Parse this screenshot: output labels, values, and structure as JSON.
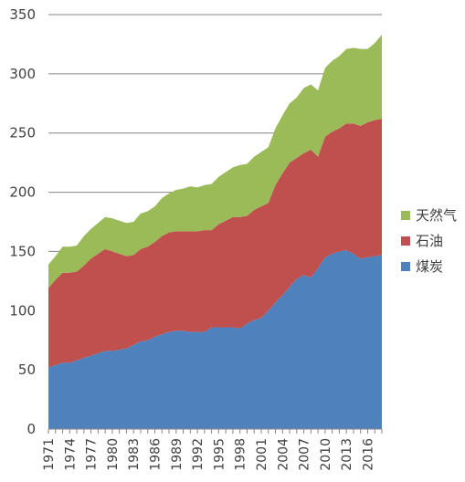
{
  "chart_data": {
    "type": "area",
    "stacked": true,
    "x": [
      1971,
      1972,
      1973,
      1974,
      1975,
      1976,
      1977,
      1978,
      1979,
      1980,
      1981,
      1982,
      1983,
      1984,
      1985,
      1986,
      1987,
      1988,
      1989,
      1990,
      1991,
      1992,
      1993,
      1994,
      1995,
      1996,
      1997,
      1998,
      1999,
      2000,
      2001,
      2002,
      2003,
      2004,
      2005,
      2006,
      2007,
      2008,
      2009,
      2010,
      2011,
      2012,
      2013,
      2014,
      2015,
      2016,
      2017,
      2018
    ],
    "x_tick_labels": [
      "1971",
      "1974",
      "1977",
      "1980",
      "1983",
      "1986",
      "1989",
      "1992",
      "1995",
      "1998",
      "2001",
      "2004",
      "2007",
      "2010",
      "2013",
      "2016"
    ],
    "ylim": [
      0,
      350
    ],
    "y_ticks": [
      0,
      50,
      100,
      150,
      200,
      250,
      300,
      350
    ],
    "grid": "horizontal",
    "legend_position": "right",
    "series": [
      {
        "name": "煤炭",
        "color": "#4f81bd",
        "values": [
          52,
          54,
          56,
          56,
          58,
          60,
          62,
          64,
          66,
          66,
          67,
          68,
          71,
          74,
          75,
          78,
          80,
          82,
          83,
          83,
          82,
          82,
          82,
          86,
          86,
          86,
          86,
          85,
          89,
          92,
          94,
          100,
          107,
          113,
          120,
          127,
          130,
          128,
          136,
          145,
          148,
          150,
          151,
          148,
          144,
          145,
          146,
          147
        ]
      },
      {
        "name": "石油",
        "color": "#c0504d",
        "values": [
          67,
          72,
          76,
          76,
          75,
          78,
          82,
          84,
          86,
          84,
          81,
          78,
          76,
          78,
          79,
          80,
          83,
          84,
          84,
          84,
          85,
          85,
          86,
          82,
          87,
          90,
          93,
          94,
          91,
          93,
          94,
          91,
          99,
          103,
          105,
          102,
          103,
          108,
          94,
          102,
          103,
          104,
          107,
          110,
          112,
          114,
          115,
          115
        ]
      },
      {
        "name": "天然气",
        "color": "#9bbb59",
        "values": [
          20,
          20,
          22,
          22,
          22,
          25,
          25,
          26,
          27,
          28,
          28,
          28,
          28,
          30,
          30,
          30,
          32,
          33,
          35,
          36,
          38,
          37,
          38,
          39,
          40,
          41,
          42,
          44,
          44,
          45,
          46,
          47,
          48,
          49,
          50,
          51,
          55,
          55,
          56,
          58,
          60,
          61,
          63,
          64,
          65,
          62,
          65,
          71
        ]
      }
    ]
  }
}
